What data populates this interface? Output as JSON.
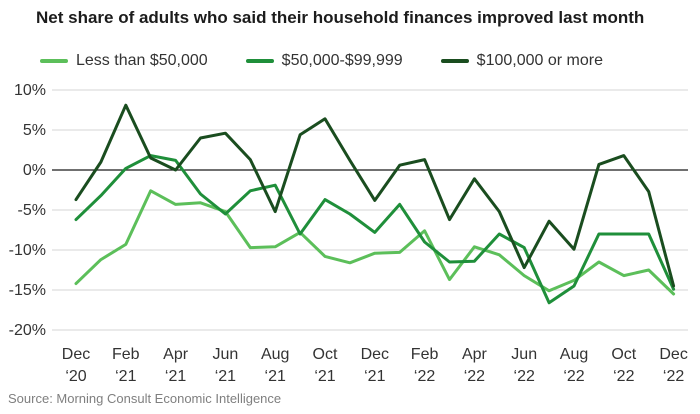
{
  "title": "Net share of adults who said their household finances improved last month",
  "source": "Source: Morning Consult Economic Intelligence",
  "chart_data": {
    "type": "line",
    "title": "Net share of adults who said their household finances improved last month",
    "xlabel": "",
    "ylabel": "",
    "ylim": [
      -20,
      10
    ],
    "y_ticks": [
      "10%",
      "5%",
      "0%",
      "-5%",
      "-10%",
      "-15%",
      "-20%"
    ],
    "y_tick_values": [
      10,
      5,
      0,
      -5,
      -10,
      -15,
      -20
    ],
    "grid": "horizontal",
    "legend_position": "top",
    "x": [
      "Dec '20",
      "Jan '21",
      "Feb '21",
      "Mar '21",
      "Apr '21",
      "May '21",
      "Jun '21",
      "Jul '21",
      "Aug '21",
      "Sep '21",
      "Oct '21",
      "Nov '21",
      "Dec '21",
      "Jan '22",
      "Feb '22",
      "Mar '22",
      "Apr '22",
      "May '22",
      "Jun '22",
      "Jul '22",
      "Aug '22",
      "Sep '22",
      "Oct '22",
      "Nov '22",
      "Dec '22"
    ],
    "x_tick_labels": [
      {
        "line1": "Dec",
        "line2": "‘20",
        "index": 0
      },
      {
        "line1": "Feb",
        "line2": "‘21",
        "index": 2
      },
      {
        "line1": "Apr",
        "line2": "‘21",
        "index": 4
      },
      {
        "line1": "Jun",
        "line2": "‘21",
        "index": 6
      },
      {
        "line1": "Aug",
        "line2": "‘21",
        "index": 8
      },
      {
        "line1": "Oct",
        "line2": "‘21",
        "index": 10
      },
      {
        "line1": "Dec",
        "line2": "‘21",
        "index": 12
      },
      {
        "line1": "Feb",
        "line2": "‘22",
        "index": 14
      },
      {
        "line1": "Apr",
        "line2": "‘22",
        "index": 16
      },
      {
        "line1": "Jun",
        "line2": "‘22",
        "index": 18
      },
      {
        "line1": "Aug",
        "line2": "‘22",
        "index": 20
      },
      {
        "line1": "Oct",
        "line2": "‘22",
        "index": 22
      },
      {
        "line1": "Dec",
        "line2": "‘22",
        "index": 24
      }
    ],
    "series": [
      {
        "name": "Less than $50,000",
        "color": "#5cbf5a",
        "values": [
          -14.2,
          -11.2,
          -9.3,
          -2.6,
          -4.3,
          -4.1,
          -5.2,
          -9.7,
          -9.6,
          -7.8,
          -10.8,
          -11.6,
          -10.4,
          -10.3,
          -7.6,
          -13.7,
          -9.6,
          -10.6,
          -13.2,
          -15.1,
          -13.8,
          -11.5,
          -13.2,
          -12.5,
          -15.5
        ]
      },
      {
        "name": "$50,000-$99,999",
        "color": "#1f8f3a",
        "values": [
          -6.2,
          -3.2,
          0.2,
          1.8,
          1.2,
          -3.0,
          -5.5,
          -2.6,
          -1.9,
          -8.0,
          -3.7,
          -5.5,
          -7.8,
          -4.3,
          -9.0,
          -11.5,
          -11.4,
          -8.0,
          -9.7,
          -16.6,
          -14.5,
          -8.0,
          -8.0,
          -8.0,
          -14.9
        ]
      },
      {
        "name": "$100,000 or more",
        "color": "#1a4d1f",
        "values": [
          -3.7,
          1.0,
          8.1,
          1.5,
          0.0,
          4.0,
          4.6,
          1.3,
          -5.2,
          4.4,
          6.4,
          1.2,
          -3.8,
          0.6,
          1.3,
          -6.2,
          -1.1,
          -5.2,
          -12.2,
          -6.4,
          -9.9,
          0.7,
          1.8,
          -2.7,
          -14.5
        ]
      }
    ]
  }
}
